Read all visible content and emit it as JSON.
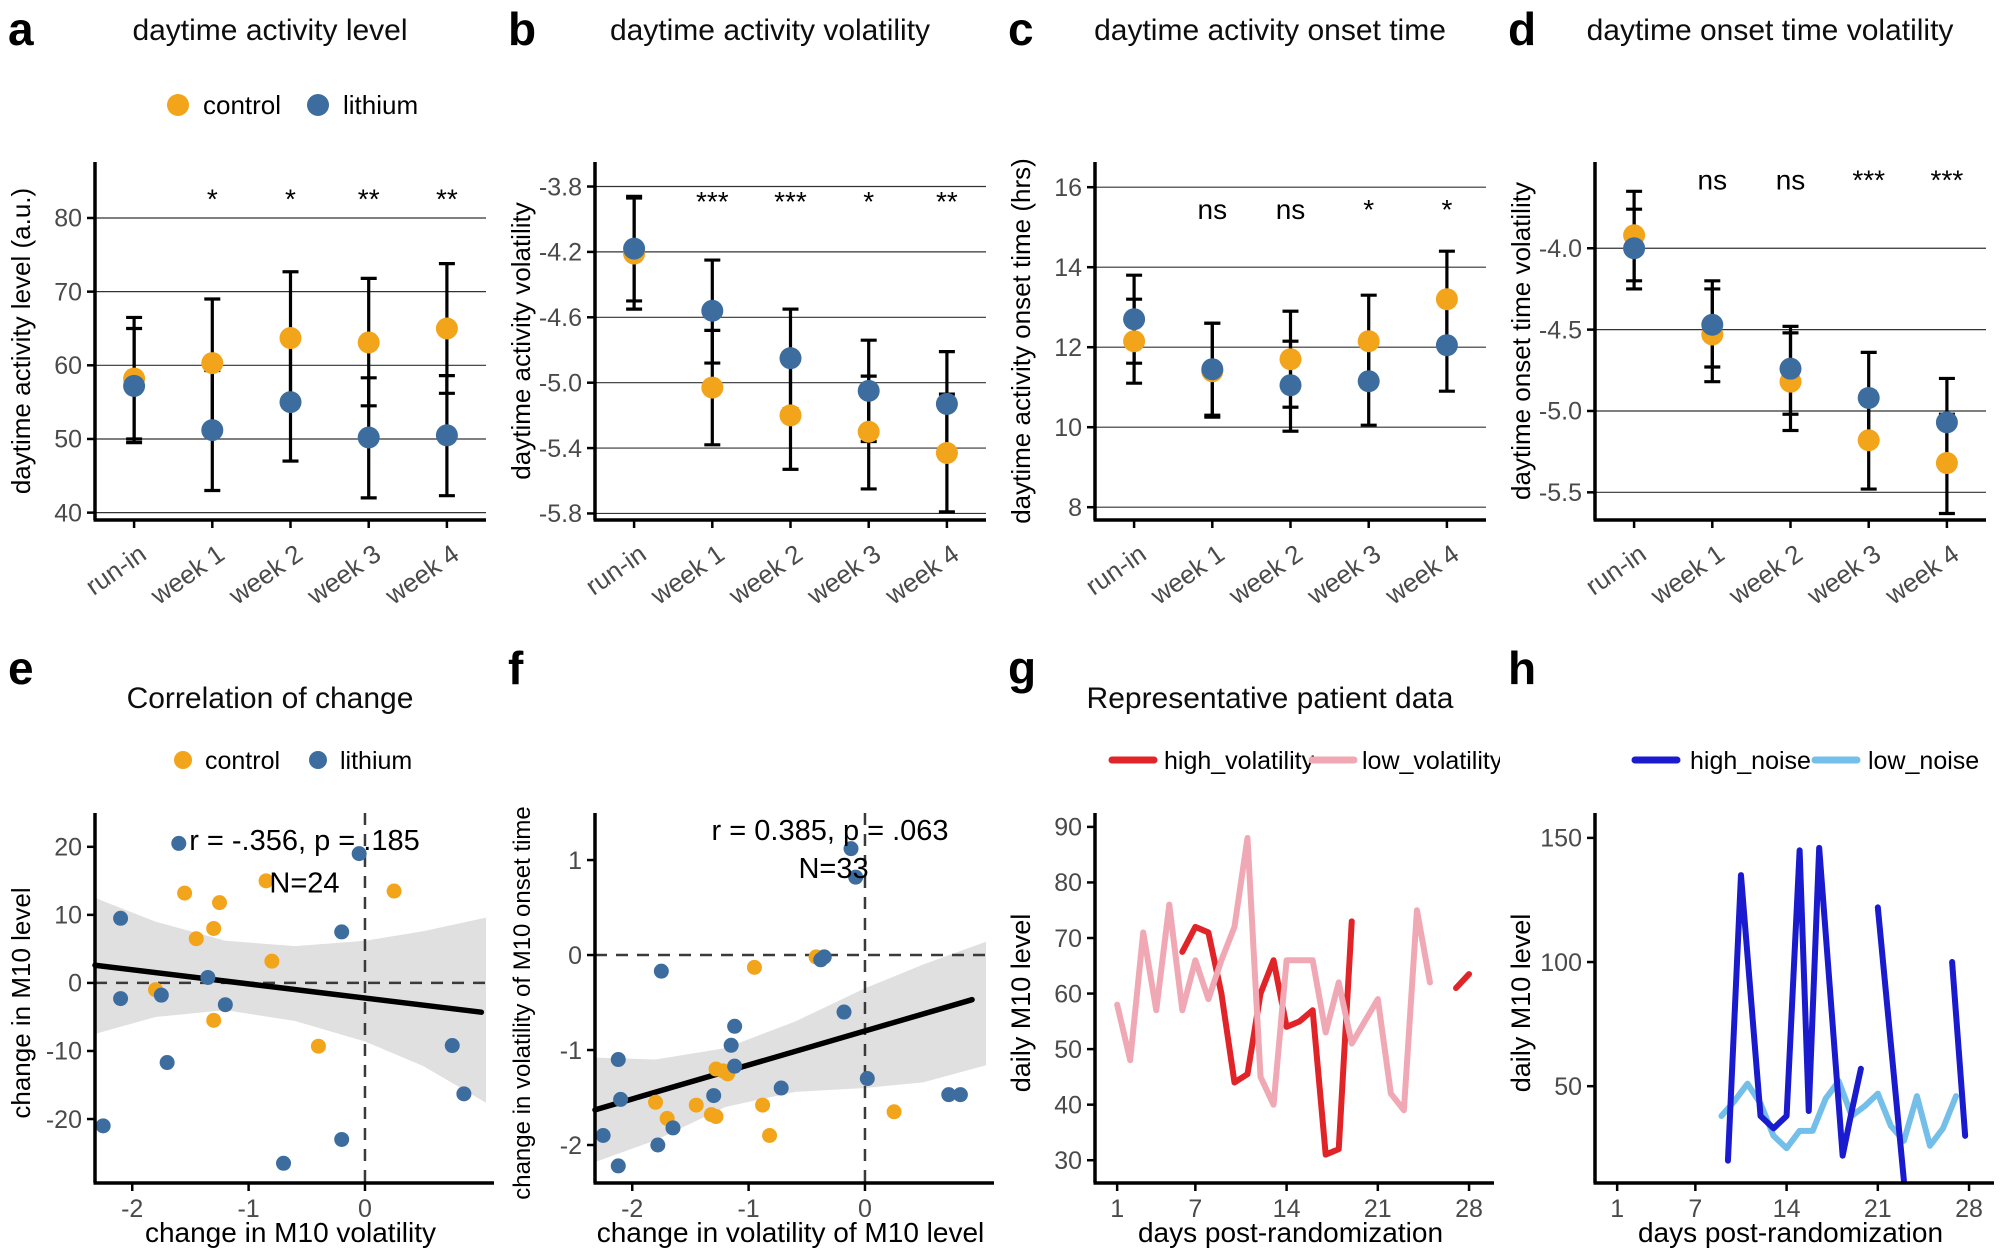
{
  "figure_title": "",
  "palette": {
    "control_orange": "#F2A41B",
    "lithium_blue": "#3D6D9E",
    "high_volatility_red": "#E02428",
    "low_volatility_pink": "#F0A9B4",
    "high_noise_blue": "#1A1ACE",
    "low_noise_lightblue": "#74BFEA",
    "grid": "#333333",
    "tick_text": "#4a4a4a",
    "band_gray": "#DBDBDB"
  },
  "chart_data": [
    {
      "letter": "a",
      "title": "daytime activity level",
      "type": "pointrange",
      "legend_kind": "dots",
      "legend": [
        {
          "label": "control",
          "color": "#F2A41B"
        },
        {
          "label": "lithium",
          "color": "#3D6D9E"
        }
      ],
      "ylabel": "daytime activity level (a.u.)",
      "ylim": [
        39,
        87.6
      ],
      "ytick_vals": [
        40,
        50,
        60,
        70,
        80
      ],
      "ytick_labels": [
        "40",
        "50",
        "60",
        "70",
        "80"
      ],
      "categories": [
        "run-in",
        "week 1",
        "week 2",
        "week 3",
        "week 4"
      ],
      "sig": [
        "",
        "*",
        "*",
        "**",
        "**"
      ],
      "sig_y": 81.3,
      "grid": true,
      "series": [
        {
          "name": "control",
          "color": "#F2A41B",
          "y": [
            58.2,
            60.3,
            63.7,
            63.1,
            65.0
          ],
          "lo": [
            50.0,
            51.5,
            54.8,
            54.5,
            56.2
          ],
          "hi": [
            66.5,
            69.0,
            72.7,
            71.8,
            73.8
          ]
        },
        {
          "name": "lithium",
          "color": "#3D6D9E",
          "y": [
            57.2,
            51.2,
            55.0,
            50.2,
            50.5
          ],
          "lo": [
            49.5,
            43.0,
            47.0,
            42.0,
            42.3
          ],
          "hi": [
            65.0,
            59.3,
            63.0,
            58.3,
            58.6
          ]
        }
      ]
    },
    {
      "letter": "b",
      "title": "daytime activity volatility",
      "type": "pointrange",
      "legend_kind": "none",
      "legend": [],
      "ylabel": "daytime activity volatility",
      "ylim": [
        -5.84,
        -3.65
      ],
      "ytick_vals": [
        -3.8,
        -4.2,
        -4.6,
        -5.0,
        -5.4,
        -5.8
      ],
      "ytick_labels": [
        "-3.8",
        "-4.2",
        "-4.6",
        "-5.0",
        "-5.4",
        "-5.8"
      ],
      "categories": [
        "run-in",
        "week 1",
        "week 2",
        "week 3",
        "week 4"
      ],
      "sig": [
        "",
        "***",
        "***",
        "*",
        "**"
      ],
      "sig_y": -3.95,
      "grid": true,
      "series": [
        {
          "name": "control",
          "color": "#F2A41B",
          "y": [
            -4.21,
            -5.03,
            -5.2,
            -5.3,
            -5.43
          ],
          "lo": [
            -4.55,
            -5.38,
            -5.53,
            -5.65,
            -5.79
          ],
          "hi": [
            -3.87,
            -4.68,
            -4.87,
            -4.96,
            -5.07
          ]
        },
        {
          "name": "lithium",
          "color": "#3D6D9E",
          "y": [
            -4.18,
            -4.56,
            -4.85,
            -5.05,
            -5.13
          ],
          "lo": [
            -4.5,
            -4.88,
            -5.16,
            -5.36,
            -5.45
          ],
          "hi": [
            -3.86,
            -4.25,
            -4.55,
            -4.74,
            -4.81
          ]
        }
      ]
    },
    {
      "letter": "c",
      "title": "daytime activity onset time",
      "type": "pointrange",
      "legend_kind": "none",
      "legend": [],
      "ylabel": "daytime activity onset time (hrs)",
      "ylim": [
        7.68,
        16.63
      ],
      "ytick_vals": [
        8,
        10,
        12,
        14,
        16
      ],
      "ytick_labels": [
        "8",
        "10",
        "12",
        "14",
        "16"
      ],
      "categories": [
        "run-in",
        "week 1",
        "week 2",
        "week 3",
        "week 4"
      ],
      "sig": [
        "",
        "ns",
        "ns",
        "*",
        "*"
      ],
      "sig_y": 15.2,
      "grid": true,
      "series": [
        {
          "name": "control",
          "color": "#F2A41B",
          "y": [
            12.15,
            11.4,
            11.7,
            12.15,
            13.2
          ],
          "lo": [
            11.1,
            10.25,
            10.5,
            11.0,
            12.0
          ],
          "hi": [
            13.2,
            12.6,
            12.9,
            13.3,
            14.4
          ]
        },
        {
          "name": "lithium",
          "color": "#3D6D9E",
          "y": [
            12.7,
            11.45,
            11.05,
            11.15,
            12.05
          ],
          "lo": [
            11.6,
            10.3,
            9.9,
            10.05,
            10.9
          ],
          "hi": [
            13.8,
            12.6,
            12.15,
            12.3,
            13.2
          ]
        }
      ]
    },
    {
      "letter": "d",
      "title": "daytime onset time volatility",
      "type": "pointrange",
      "legend_kind": "none",
      "legend": [],
      "ylabel": "daytime onset time volatility",
      "ylim": [
        -5.67,
        -3.47
      ],
      "ytick_vals": [
        -4.0,
        -4.5,
        -5.0,
        -5.5
      ],
      "ytick_labels": [
        "-4.0",
        "-4.5",
        "-5.0",
        "-5.5"
      ],
      "categories": [
        "run-in",
        "week 1",
        "week 2",
        "week 3",
        "week 4"
      ],
      "sig": [
        "",
        "ns",
        "ns",
        "***",
        "***"
      ],
      "sig_y": -3.64,
      "grid": true,
      "series": [
        {
          "name": "control",
          "color": "#F2A41B",
          "y": [
            -3.92,
            -4.53,
            -4.82,
            -5.18,
            -5.32
          ],
          "lo": [
            -4.2,
            -4.82,
            -5.12,
            -5.48,
            -5.63
          ],
          "hi": [
            -3.65,
            -4.25,
            -4.52,
            -4.88,
            -5.02
          ]
        },
        {
          "name": "lithium",
          "color": "#3D6D9E",
          "y": [
            -4.0,
            -4.47,
            -4.74,
            -4.92,
            -5.07
          ],
          "lo": [
            -4.25,
            -4.73,
            -5.02,
            -5.2,
            -5.35
          ],
          "hi": [
            -3.76,
            -4.2,
            -4.48,
            -4.64,
            -4.8
          ]
        }
      ]
    },
    {
      "letter": "e",
      "title": "Correlation of change",
      "type": "scatter",
      "legend_kind": "dots",
      "legend": [
        {
          "label": "control",
          "color": "#F2A41B"
        },
        {
          "label": "lithium",
          "color": "#3D6D9E"
        }
      ],
      "xlabel": "change in M10 volatility",
      "ylabel": "change in M10 level",
      "xlim": [
        -2.32,
        1.04
      ],
      "ylim": [
        -29.4,
        23.5
      ],
      "xtick_vals": [
        -2,
        -1,
        0
      ],
      "xtick_labels": [
        "-2",
        "-1",
        "0"
      ],
      "ytick_vals": [
        -20,
        -10,
        0,
        10,
        20
      ],
      "ytick_labels": [
        "-20",
        "-10",
        "0",
        "10",
        "20"
      ],
      "annotation_line1": "r = -.356, p = .185",
      "annotation_line2": "N=24",
      "ann_pos": [
        [
          -0.52,
          19.5
        ],
        [
          -0.52,
          13.3
        ]
      ],
      "regression": {
        "x": [
          -2.32,
          1.0
        ],
        "y": [
          2.6,
          -4.3
        ]
      },
      "band": {
        "x": [
          -2.32,
          -1.8,
          -1.2,
          -0.6,
          0.0,
          0.5,
          1.04
        ],
        "upper": [
          12.5,
          9.0,
          6.2,
          5.4,
          6.2,
          7.6,
          9.6
        ],
        "lower": [
          -7.5,
          -5.0,
          -4.0,
          -5.6,
          -8.6,
          -12.2,
          -17.6
        ]
      },
      "points": {
        "control": [
          [
            -1.8,
            -1.0
          ],
          [
            -1.55,
            13.2
          ],
          [
            -1.45,
            6.5
          ],
          [
            -1.3,
            8.0
          ],
          [
            -1.25,
            11.8
          ],
          [
            -1.3,
            -5.5
          ],
          [
            -0.85,
            15.0
          ],
          [
            -0.8,
            3.2
          ],
          [
            -0.4,
            -9.3
          ],
          [
            0.25,
            13.5
          ]
        ],
        "lithium": [
          [
            -2.25,
            -21.0
          ],
          [
            -2.1,
            9.5
          ],
          [
            -2.1,
            -2.3
          ],
          [
            -1.75,
            -1.8
          ],
          [
            -1.6,
            20.5
          ],
          [
            -1.7,
            -11.7
          ],
          [
            -1.35,
            0.8
          ],
          [
            -1.2,
            -3.2
          ],
          [
            -0.7,
            -26.5
          ],
          [
            -0.2,
            7.5
          ],
          [
            -0.2,
            -23.0
          ],
          [
            -0.05,
            19.0
          ],
          [
            0.75,
            -9.2
          ],
          [
            0.85,
            -16.3
          ]
        ]
      }
    },
    {
      "letter": "f",
      "title": "",
      "type": "scatter",
      "legend_kind": "none",
      "legend": [],
      "xlabel": "change in volatility of M10 level",
      "ylabel": "change in volatility of M10 onset time",
      "xlim": [
        -2.32,
        1.04
      ],
      "ylim": [
        -2.4,
        1.39
      ],
      "xtick_vals": [
        -2,
        -1,
        0
      ],
      "xtick_labels": [
        "-2",
        "-1",
        "0"
      ],
      "ytick_vals": [
        -2,
        -1,
        0,
        1
      ],
      "ytick_labels": [
        "-2",
        "-1",
        "0",
        "1"
      ],
      "annotation_line1": "r = 0.385, p = .063",
      "annotation_line2": "N=33",
      "ann_pos": [
        [
          -0.3,
          1.21
        ],
        [
          -0.27,
          0.81
        ]
      ],
      "regression": {
        "x": [
          -2.32,
          0.92
        ],
        "y": [
          -1.63,
          -0.47
        ]
      },
      "band": {
        "x": [
          -2.32,
          -1.8,
          -1.2,
          -0.6,
          0.0,
          0.5,
          1.04
        ],
        "upper": [
          -1.08,
          -1.1,
          -0.98,
          -0.7,
          -0.35,
          -0.1,
          0.14
        ],
        "lower": [
          -2.18,
          -1.95,
          -1.6,
          -1.44,
          -1.4,
          -1.34,
          -1.16
        ]
      },
      "points": {
        "control": [
          [
            -0.95,
            -0.13
          ],
          [
            -0.42,
            -0.02
          ],
          [
            -1.28,
            -1.2
          ],
          [
            -1.18,
            -1.25
          ],
          [
            -1.22,
            -1.22
          ],
          [
            -1.8,
            -1.55
          ],
          [
            -1.45,
            -1.58
          ],
          [
            -0.88,
            -1.58
          ],
          [
            -1.32,
            -1.68
          ],
          [
            -1.28,
            -1.7
          ],
          [
            -1.7,
            -1.72
          ],
          [
            -0.82,
            -1.9
          ],
          [
            0.25,
            -1.65
          ]
        ],
        "lithium": [
          [
            -0.12,
            1.12
          ],
          [
            -0.08,
            0.82
          ],
          [
            -1.75,
            -0.17
          ],
          [
            -0.38,
            -0.05
          ],
          [
            -0.18,
            -0.6
          ],
          [
            -1.12,
            -0.75
          ],
          [
            -1.15,
            -0.95
          ],
          [
            -2.12,
            -1.1
          ],
          [
            -1.12,
            -1.17
          ],
          [
            -1.3,
            -1.48
          ],
          [
            -0.72,
            -1.4
          ],
          [
            -2.1,
            -1.52
          ],
          [
            -1.65,
            -1.82
          ],
          [
            -2.25,
            -1.9
          ],
          [
            -1.78,
            -2.0
          ],
          [
            -2.12,
            -2.22
          ],
          [
            0.02,
            -1.3
          ],
          [
            0.72,
            -1.47
          ],
          [
            0.82,
            -1.47
          ],
          [
            -0.35,
            -0.02
          ]
        ]
      }
    },
    {
      "letter": "g",
      "title": "Representative patient data",
      "type": "line",
      "legend_kind": "lines",
      "legend": [
        {
          "label": "high_volatility",
          "color": "#E02428"
        },
        {
          "label": "low_volatility",
          "color": "#F0A9B4"
        }
      ],
      "xlabel": "days post-randomization",
      "ylabel": "daily M10 level",
      "xlim": [
        -0.7,
        29.3
      ],
      "ylim": [
        25.9,
        90.7
      ],
      "xtick_vals": [
        1,
        7,
        14,
        21,
        28
      ],
      "xtick_labels": [
        "1",
        "7",
        "14",
        "21",
        "28"
      ],
      "ytick_vals": [
        30,
        40,
        50,
        60,
        70,
        80,
        90
      ],
      "ytick_labels": [
        "30",
        "40",
        "50",
        "60",
        "70",
        "80",
        "90"
      ],
      "series": [
        {
          "name": "high_volatility",
          "color": "#E02428",
          "width": 6,
          "segments": [
            {
              "x": [
                6,
                7,
                8,
                9,
                10,
                11,
                12,
                13,
                14,
                15,
                16,
                17,
                18,
                19
              ],
              "y": [
                67.5,
                72,
                71,
                60,
                44,
                45.5,
                60,
                66,
                54,
                55,
                57,
                31,
                32,
                73
              ]
            },
            {
              "x": [
                27,
                28
              ],
              "y": [
                61,
                63.5
              ]
            }
          ]
        },
        {
          "name": "low_volatility",
          "color": "#F0A9B4",
          "width": 6,
          "segments": [
            {
              "x": [
                1,
                2,
                3,
                4,
                5,
                6,
                7,
                8,
                9,
                10,
                11,
                12,
                13,
                14,
                15,
                16,
                17,
                18,
                19,
                20,
                21,
                22,
                23,
                24,
                25
              ],
              "y": [
                58,
                48,
                71,
                57,
                76,
                57,
                66,
                59,
                66,
                72,
                88,
                45,
                40,
                66,
                66,
                66,
                53,
                62,
                51,
                55,
                59,
                42,
                39,
                75,
                62
              ]
            }
          ]
        }
      ]
    },
    {
      "letter": "h",
      "title": "",
      "type": "line",
      "legend_kind": "lines",
      "legend": [
        {
          "label": "high_noise",
          "color": "#1A1ACE"
        },
        {
          "label": "low_noise",
          "color": "#74BFEA"
        }
      ],
      "xlabel": "days post-randomization",
      "ylabel": "daily M10 level",
      "xlim": [
        -0.7,
        29.3
      ],
      "ylim": [
        11,
        156
      ],
      "xtick_vals": [
        1,
        7,
        14,
        21,
        28
      ],
      "xtick_labels": [
        "1",
        "7",
        "14",
        "21",
        "28"
      ],
      "ytick_vals": [
        50,
        100,
        150
      ],
      "ytick_labels": [
        "50",
        "100",
        "150"
      ],
      "series": [
        {
          "name": "low_noise",
          "color": "#74BFEA",
          "width": 6,
          "segments": [
            {
              "x": [
                9,
                10,
                11,
                12,
                13,
                14,
                15,
                16,
                17,
                18,
                19,
                20,
                21,
                22,
                23,
                24,
                25,
                26,
                27
              ],
              "y": [
                38,
                44,
                51,
                43,
                30,
                25,
                32,
                32,
                45,
                52,
                38,
                42,
                47,
                34,
                28,
                46,
                26,
                33,
                46
              ]
            }
          ]
        },
        {
          "name": "high_noise",
          "color": "#1A1ACE",
          "width": 6,
          "segments": [
            {
              "x": [
                9.5,
                10.5,
                12,
                13,
                14,
                15,
                15.7,
                16.5,
                18.3,
                19,
                19.7
              ],
              "y": [
                20,
                135,
                38,
                33,
                38,
                145,
                40,
                146,
                22,
                40,
                57
              ]
            },
            {
              "x": [
                21,
                23
              ],
              "y": [
                122,
                12
              ]
            },
            {
              "x": [
                26.7,
                27.7
              ],
              "y": [
                100,
                30
              ]
            }
          ]
        }
      ]
    }
  ]
}
